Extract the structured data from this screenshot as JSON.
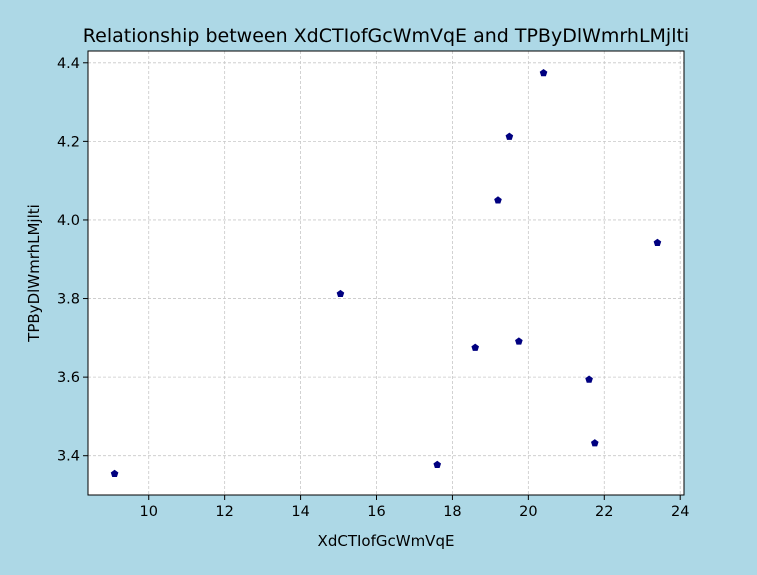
{
  "chart_data": {
    "type": "scatter",
    "title": "Relationship between XdCTIofGcWmVqE and TPByDlWmrhLMjlti",
    "xlabel": "XdCTIofGcWmVqE",
    "ylabel": "TPByDlWmrhLMjlti",
    "xlim": [
      8.4,
      24.1
    ],
    "ylim": [
      3.3,
      4.43
    ],
    "xticks": [
      10,
      12,
      14,
      16,
      18,
      20,
      22,
      24
    ],
    "yticks": [
      3.4,
      3.6,
      3.8,
      4.0,
      4.2,
      4.4
    ],
    "xtick_labels": [
      "10",
      "12",
      "14",
      "16",
      "18",
      "20",
      "22",
      "24"
    ],
    "ytick_labels": [
      "3.4",
      "3.6",
      "3.8",
      "4.0",
      "4.2",
      "4.4"
    ],
    "grid": true,
    "marker": "pentagon",
    "colors": {
      "figure_background": "#add8e6",
      "plot_background": "#ffffff",
      "point": "#000080",
      "grid": "#c8c8c8"
    },
    "points": [
      {
        "x": 9.1,
        "y": 3.354
      },
      {
        "x": 15.05,
        "y": 3.812
      },
      {
        "x": 17.6,
        "y": 3.377
      },
      {
        "x": 18.6,
        "y": 3.675
      },
      {
        "x": 19.2,
        "y": 4.05
      },
      {
        "x": 19.5,
        "y": 4.212
      },
      {
        "x": 19.75,
        "y": 3.691
      },
      {
        "x": 20.4,
        "y": 4.374
      },
      {
        "x": 21.6,
        "y": 3.594
      },
      {
        "x": 21.75,
        "y": 3.432
      },
      {
        "x": 23.4,
        "y": 3.942
      }
    ]
  }
}
